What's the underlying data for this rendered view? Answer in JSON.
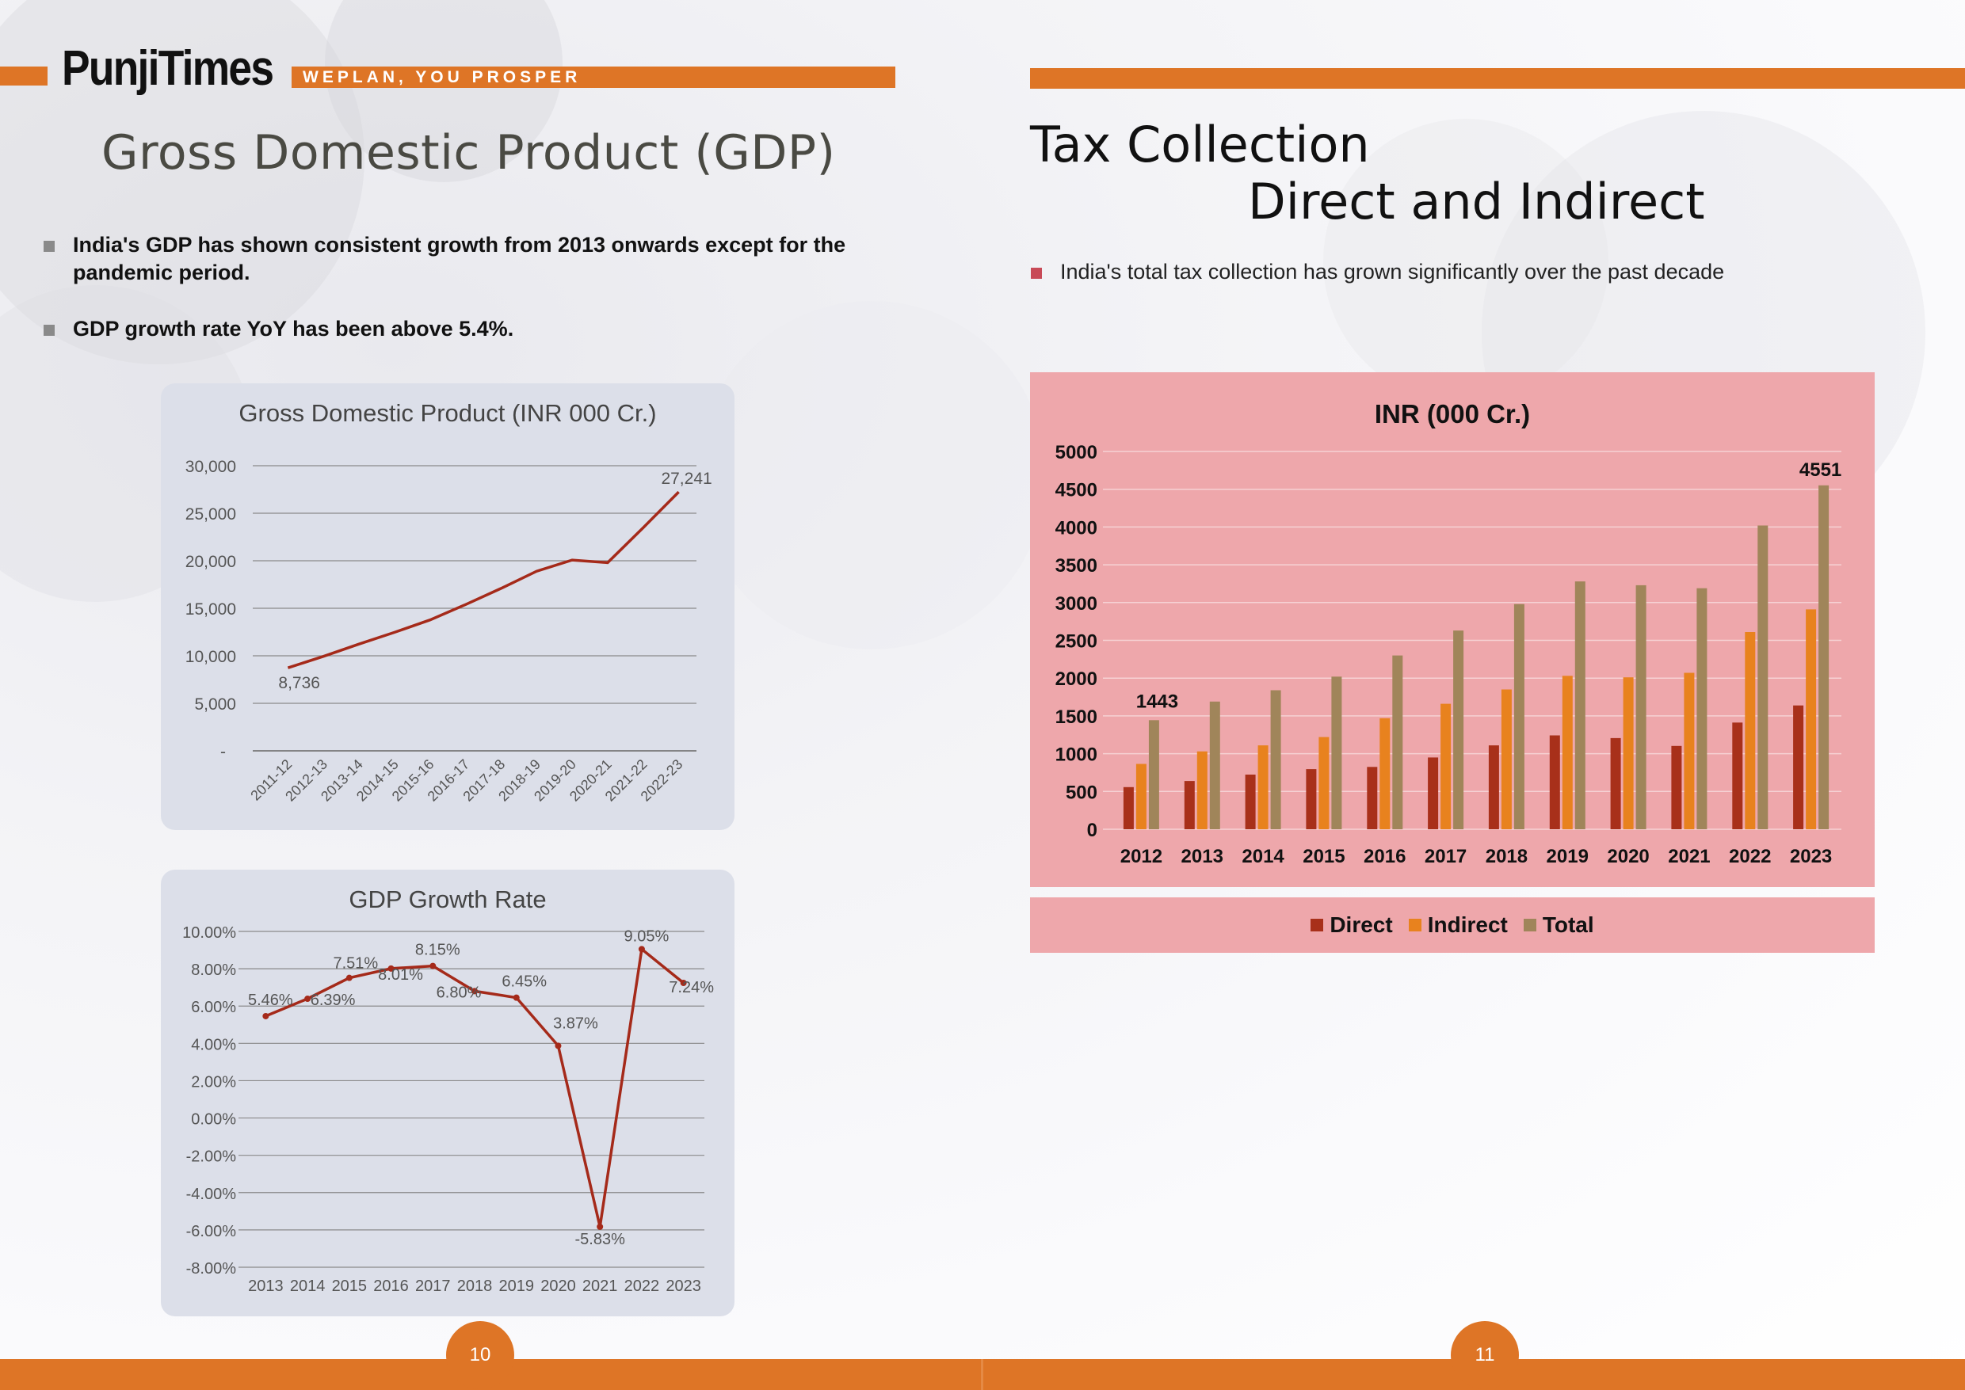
{
  "header": {
    "logo": "PunjiTimes",
    "tagline": "WEPLAN, YOU PROSPER"
  },
  "left_page": {
    "title": "Gross Domestic Product (GDP)",
    "bullets": [
      "India's GDP has shown consistent growth from 2013 onwards except for the pandemic period.",
      "GDP growth rate YoY has been above 5.4%."
    ],
    "page_number": "10"
  },
  "right_page": {
    "title_line1": "Tax Collection",
    "title_line2": "Direct and Indirect",
    "bullet": "India's total tax collection has grown significantly  over the past decade",
    "page_number": "11"
  },
  "colors": {
    "accent_orange": "#de7526",
    "gdp_line": "#a52a1a",
    "direct": "#a8301a",
    "indirect": "#e8821e",
    "total": "#a0855a"
  },
  "chart_data": [
    {
      "id": "gdp",
      "type": "line",
      "title": "Gross Domestic Product (INR 000 Cr.)",
      "categories": [
        "2011-12",
        "2012-13",
        "2013-14",
        "2014-15",
        "2015-16",
        "2016-17",
        "2017-18",
        "2018-19",
        "2019-20",
        "2020-21",
        "2021-22",
        "2022-23"
      ],
      "values": [
        8736,
        9944,
        11234,
        12468,
        13772,
        15392,
        17090,
        18899,
        20074,
        19801,
        23471,
        27241
      ],
      "ylim": [
        0,
        30000
      ],
      "yticks": [
        "-",
        "5,000",
        "10,000",
        "15,000",
        "20,000",
        "25,000",
        "30,000"
      ],
      "data_labels": {
        "first": "8,736",
        "last": "27,241"
      },
      "grid": true
    },
    {
      "id": "growth",
      "type": "line",
      "title": "GDP Growth Rate",
      "categories": [
        "2013",
        "2014",
        "2015",
        "2016",
        "2017",
        "2018",
        "2019",
        "2020",
        "2021",
        "2022",
        "2023"
      ],
      "values": [
        5.46,
        6.39,
        7.51,
        8.01,
        8.15,
        6.8,
        6.45,
        3.87,
        -5.83,
        9.05,
        7.24
      ],
      "labels": [
        "5.46%",
        "6.39%",
        "7.51%",
        "8.01%",
        "8.15%",
        "6.80%",
        "6.45%",
        "3.87%",
        "-5.83%",
        "9.05%",
        "7.24%"
      ],
      "ylim": [
        -8,
        10
      ],
      "yticks": [
        "-8.00%",
        "-6.00%",
        "-4.00%",
        "-2.00%",
        "0.00%",
        "2.00%",
        "4.00%",
        "6.00%",
        "8.00%",
        "10.00%"
      ],
      "grid": true
    },
    {
      "id": "tax",
      "type": "bar",
      "title": "INR (000 Cr.)",
      "categories": [
        "2012",
        "2013",
        "2014",
        "2015",
        "2016",
        "2017",
        "2018",
        "2019",
        "2020",
        "2021",
        "2022",
        "2023"
      ],
      "series": [
        {
          "name": "Direct",
          "values": [
            558,
            638,
            723,
            796,
            825,
            950,
            1110,
            1242,
            1206,
            1103,
            1412,
            1638
          ]
        },
        {
          "name": "Indirect",
          "values": [
            865,
            1030,
            1110,
            1220,
            1470,
            1660,
            1850,
            2030,
            2010,
            2070,
            2610,
            2910
          ]
        },
        {
          "name": "Total",
          "values": [
            1443,
            1690,
            1840,
            2020,
            2300,
            2630,
            2980,
            3280,
            3230,
            3190,
            4020,
            4551
          ]
        }
      ],
      "data_labels": {
        "first_total": "1443",
        "last_total": "4551"
      },
      "ylim": [
        0,
        5000
      ],
      "yticks": [
        "0",
        "500",
        "1000",
        "1500",
        "2000",
        "2500",
        "3000",
        "3500",
        "4000",
        "4500",
        "5000"
      ],
      "legend": "bottom",
      "grid": true
    }
  ]
}
